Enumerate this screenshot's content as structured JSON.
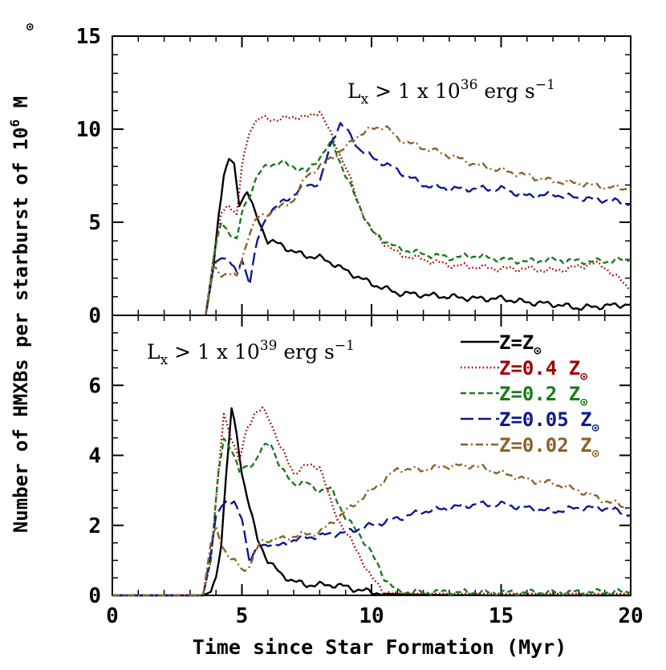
{
  "chart_data": {
    "type": "line",
    "shared_x_axis": {
      "label": "Time since Star Formation (Myr)",
      "range": [
        0,
        20
      ],
      "ticks": [
        0,
        5,
        10,
        15,
        20
      ]
    },
    "shared_y_label": "Number of HMXBs per starburst of 10",
    "shared_y_label_sup": "6",
    "shared_y_label_unit": "M",
    "legend": {
      "placement": "lower panel, top-right",
      "entries": [
        {
          "key": "solar",
          "text": "Z=Z",
          "color": "#000000",
          "dash": "solid"
        },
        {
          "key": "z04",
          "text": "Z=0.4 Z",
          "color": "#a00000",
          "dash": "dotted"
        },
        {
          "key": "z02",
          "text": "Z=0.2 Z",
          "color": "#1a7a1a",
          "dash": "short-dash"
        },
        {
          "key": "z005",
          "text": "Z=0.05 Z",
          "color": "#101890",
          "dash": "long-dash"
        },
        {
          "key": "z002",
          "text": "Z=0.02 Z",
          "color": "#8b6228",
          "dash": "dash-dot"
        }
      ]
    },
    "panels": [
      {
        "id": "top",
        "annotation_pre": "L",
        "annotation_sub": "x",
        "annotation_mid": " > 1 x 10",
        "annotation_sup": "36",
        "annotation_post": " erg s",
        "annotation_sup2": "−1",
        "ylim": [
          0,
          15
        ],
        "yticks": [
          0,
          5,
          10,
          15
        ],
        "series": [
          {
            "key": "solar",
            "x": [
              3.6,
              3.9,
              4.1,
              4.3,
              4.5,
              4.7,
              4.9,
              5.2,
              5.5,
              6.0,
              6.5,
              7.0,
              7.5,
              8.0,
              8.5,
              9.0,
              10.0,
              11.0,
              12.0,
              13.0,
              14.0,
              15.0,
              16.0,
              17.0,
              18.0,
              19.0,
              20.0
            ],
            "y": [
              0,
              2.5,
              5.5,
              7.5,
              8.4,
              8.0,
              6.0,
              6.7,
              5.5,
              4.0,
              3.8,
              3.4,
              3.2,
              3.1,
              2.8,
              2.4,
              1.7,
              1.2,
              1.1,
              1.0,
              0.9,
              0.9,
              0.7,
              0.6,
              0.4,
              0.5,
              0.6
            ]
          },
          {
            "key": "z04",
            "x": [
              3.6,
              3.9,
              4.2,
              4.5,
              4.8,
              5.0,
              5.3,
              5.6,
              6.0,
              6.5,
              7.0,
              7.5,
              8.0,
              8.5,
              9.0,
              9.5,
              10.0,
              11.0,
              12.0,
              13.0,
              14.0,
              15.0,
              16.0,
              17.0,
              18.0,
              18.5,
              19.0,
              19.5,
              20.0
            ],
            "y": [
              0,
              3.0,
              5.5,
              6.0,
              5.3,
              8.0,
              10.0,
              10.5,
              10.6,
              10.5,
              10.7,
              10.6,
              11.0,
              9.5,
              8.0,
              6.0,
              4.5,
              3.3,
              3.0,
              2.7,
              2.6,
              2.5,
              2.5,
              2.4,
              2.6,
              2.8,
              2.6,
              2.0,
              1.4
            ]
          },
          {
            "key": "z02",
            "x": [
              3.6,
              3.9,
              4.2,
              4.5,
              4.8,
              5.0,
              5.3,
              5.6,
              6.0,
              6.5,
              7.0,
              7.5,
              8.0,
              8.5,
              9.0,
              9.5,
              10.0,
              11.0,
              12.0,
              13.0,
              14.0,
              15.0,
              16.0,
              17.0,
              18.0,
              19.0,
              20.0
            ],
            "y": [
              0,
              3.0,
              5.0,
              4.5,
              4.0,
              5.5,
              6.5,
              7.5,
              8.1,
              8.2,
              8.0,
              7.7,
              8.5,
              9.3,
              7.5,
              6.0,
              4.5,
              3.6,
              3.3,
              3.1,
              3.2,
              3.0,
              2.9,
              3.0,
              2.9,
              2.9,
              3.0
            ]
          },
          {
            "key": "z005",
            "x": [
              3.6,
              3.9,
              4.2,
              4.5,
              4.8,
              5.0,
              5.3,
              5.6,
              6.0,
              6.5,
              7.0,
              7.5,
              8.0,
              8.5,
              8.8,
              9.0,
              9.5,
              10.0,
              11.0,
              12.0,
              13.0,
              14.0,
              15.0,
              16.0,
              17.0,
              18.0,
              19.0,
              20.0
            ],
            "y": [
              0,
              2.5,
              3.2,
              3.0,
              2.2,
              3.0,
              1.8,
              4.0,
              5.5,
              6.0,
              6.5,
              7.0,
              7.1,
              9.5,
              10.3,
              10.0,
              9.0,
              8.5,
              7.8,
              7.0,
              6.8,
              6.8,
              6.8,
              6.4,
              6.5,
              6.3,
              6.2,
              6.0
            ]
          },
          {
            "key": "z002",
            "x": [
              3.6,
              3.9,
              4.2,
              4.5,
              4.8,
              5.0,
              5.3,
              5.6,
              6.0,
              6.5,
              7.0,
              7.5,
              8.0,
              8.5,
              9.0,
              9.5,
              10.0,
              10.5,
              11.0,
              12.0,
              13.0,
              14.0,
              15.0,
              16.0,
              17.0,
              18.0,
              19.0,
              20.0
            ],
            "y": [
              0,
              2.5,
              2.2,
              2.3,
              2.0,
              3.0,
              4.5,
              5.2,
              5.5,
              5.8,
              6.2,
              7.5,
              8.0,
              8.5,
              9.0,
              9.7,
              10.0,
              10.2,
              9.5,
              9.0,
              8.6,
              8.1,
              7.8,
              7.5,
              7.2,
              7.1,
              6.9,
              6.8
            ]
          }
        ]
      },
      {
        "id": "bottom",
        "annotation_pre": "L",
        "annotation_sub": "x",
        "annotation_mid": " > 1 x 10",
        "annotation_sup": "39",
        "annotation_post": " erg s",
        "annotation_sup2": "−1",
        "ylim": [
          0,
          8
        ],
        "yticks": [
          0,
          2,
          4,
          6
        ],
        "series": [
          {
            "key": "solar",
            "x": [
              0,
              3.5,
              3.8,
              4.0,
              4.2,
              4.4,
              4.6,
              4.8,
              5.0,
              5.3,
              5.6,
              6.0,
              6.5,
              7.0,
              7.5,
              8.0,
              8.5,
              9.0,
              9.5,
              10.0,
              10.5,
              11.0,
              12.0,
              13.0,
              15.0,
              20.0
            ],
            "y": [
              0,
              0,
              0.1,
              0.5,
              1.5,
              3.5,
              5.3,
              4.6,
              3.5,
              2.5,
              1.6,
              1.0,
              0.6,
              0.4,
              0.3,
              0.3,
              0.3,
              0.25,
              0.15,
              0.1,
              0.05,
              0.03,
              0.02,
              0.01,
              0,
              0
            ]
          },
          {
            "key": "z04",
            "x": [
              0,
              3.5,
              3.8,
              4.1,
              4.3,
              4.6,
              4.9,
              5.2,
              5.5,
              5.8,
              6.1,
              6.5,
              7.0,
              7.5,
              8.0,
              8.5,
              9.0,
              9.5,
              10.0,
              10.5,
              11.0,
              12.0,
              15.0,
              20.0
            ],
            "y": [
              0,
              0,
              1.0,
              3.5,
              5.2,
              4.5,
              3.8,
              4.8,
              5.2,
              5.3,
              5.0,
              4.2,
              3.5,
              3.7,
              3.7,
              2.5,
              1.8,
              1.2,
              0.5,
              0.1,
              0.05,
              0.05,
              0.05,
              0.05
            ]
          },
          {
            "key": "z02",
            "x": [
              0,
              3.5,
              3.8,
              4.1,
              4.3,
              4.6,
              4.9,
              5.2,
              5.5,
              5.8,
              6.1,
              6.5,
              7.0,
              7.5,
              8.0,
              8.5,
              9.0,
              9.5,
              10.0,
              10.5,
              11.0,
              12.0,
              15.0,
              20.0
            ],
            "y": [
              0,
              0,
              1.0,
              3.5,
              4.5,
              4.2,
              3.5,
              3.7,
              3.8,
              4.2,
              4.4,
              3.6,
              3.2,
              3.2,
              3.0,
              3.0,
              2.2,
              1.8,
              1.2,
              0.5,
              0.1,
              0.1,
              0.08,
              0.1
            ]
          },
          {
            "key": "z005",
            "x": [
              0,
              3.5,
              3.8,
              4.0,
              4.2,
              4.4,
              4.7,
              5.0,
              5.3,
              5.6,
              6.0,
              6.5,
              7.0,
              8.0,
              9.0,
              10.0,
              11.0,
              12.0,
              13.0,
              14.0,
              15.0,
              16.0,
              17.0,
              18.0,
              19.0,
              20.0
            ],
            "y": [
              0,
              0,
              1.2,
              2.2,
              2.6,
              2.7,
              2.6,
              2.2,
              1.0,
              1.3,
              1.5,
              1.4,
              1.6,
              1.7,
              1.8,
              2.0,
              2.2,
              2.4,
              2.5,
              2.6,
              2.6,
              2.5,
              2.4,
              2.5,
              2.5,
              2.3
            ]
          },
          {
            "key": "z002",
            "x": [
              0,
              3.5,
              3.8,
              4.0,
              4.2,
              4.5,
              4.8,
              5.1,
              5.4,
              5.7,
              6.0,
              6.5,
              7.0,
              8.0,
              9.0,
              10.0,
              11.0,
              12.0,
              13.0,
              14.0,
              15.0,
              16.0,
              17.0,
              18.0,
              19.0,
              20.0
            ],
            "y": [
              0,
              0,
              1.5,
              1.9,
              1.5,
              1.1,
              0.9,
              0.7,
              1.0,
              1.5,
              1.6,
              1.6,
              1.7,
              1.8,
              2.4,
              3.0,
              3.6,
              3.6,
              3.7,
              3.7,
              3.5,
              3.3,
              3.2,
              3.0,
              2.7,
              2.5
            ]
          }
        ]
      }
    ]
  }
}
